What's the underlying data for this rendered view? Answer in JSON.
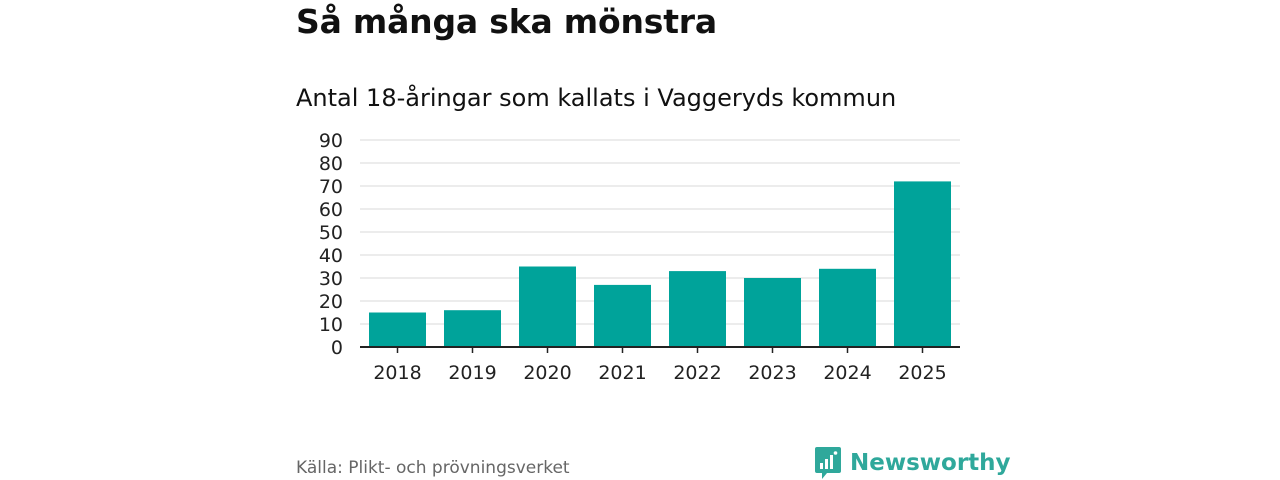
{
  "header": {
    "title": "Så många ska mönstra",
    "subtitle": "Antal 18-åringar som kallats i Vaggeryds kommun"
  },
  "footer": {
    "source": "Källa: Plikt- och prövningsverket",
    "brand": "Newsworthy",
    "brand_icon": "bar-chart-speech-bubble-icon"
  },
  "colors": {
    "bar": "#00a39a",
    "grid": "#d9d9d9",
    "axis": "#222222",
    "brand": "#2fa89b"
  },
  "chart_data": {
    "type": "bar",
    "title": "Antal 18-åringar som kallats i Vaggeryds kommun",
    "categories": [
      "2018",
      "2019",
      "2020",
      "2021",
      "2022",
      "2023",
      "2024",
      "2025"
    ],
    "values": [
      15,
      16,
      35,
      27,
      33,
      30,
      34,
      72
    ],
    "ylim": [
      0,
      90
    ],
    "yticks": [
      "0",
      "10",
      "20",
      "30",
      "40",
      "50",
      "60",
      "70",
      "80",
      "90"
    ],
    "grid": true,
    "legend": "none"
  }
}
